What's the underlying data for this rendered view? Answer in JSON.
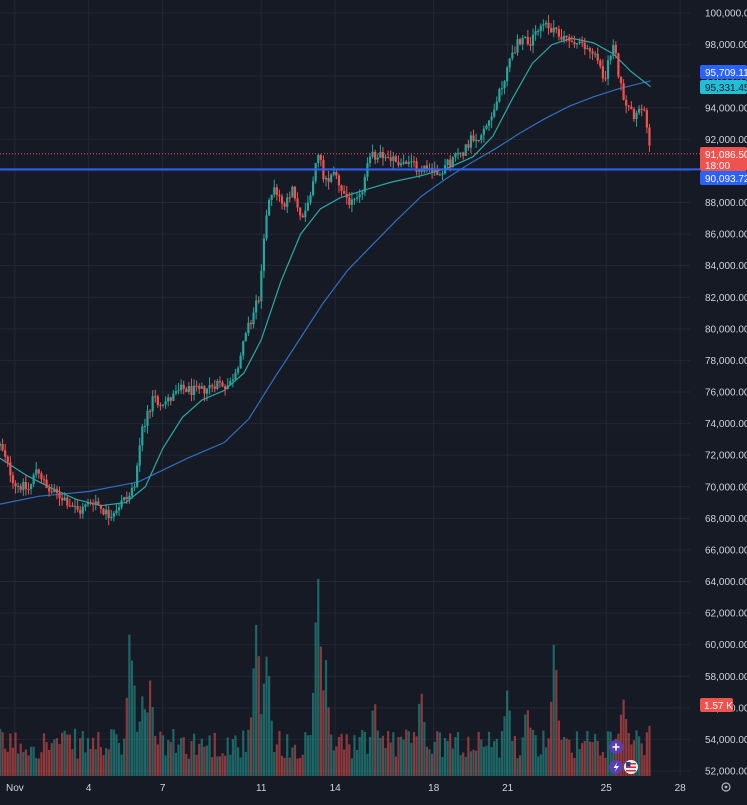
{
  "colors": {
    "background": "#161a25",
    "grid": "#232734",
    "up": "#26a69a",
    "down": "#ef5350",
    "ma_fast": "#2aa9a6",
    "ma_slow": "#2f6fbf",
    "support_line": "#2962ff",
    "axis_text": "#d1d4dc"
  },
  "price_axis": {
    "ticks": [
      "100,000.00",
      "98,000.00",
      "96,000.00",
      "94,000.00",
      "92,000.00",
      "90,000.00",
      "88,000.00",
      "86,000.00",
      "84,000.00",
      "82,000.00",
      "80,000.00",
      "78,000.00",
      "76,000.00",
      "74,000.00",
      "72,000.00",
      "70,000.00",
      "68,000.00",
      "66,000.00",
      "64,000.00",
      "62,000.00",
      "60,000.00",
      "58,000.00",
      "56,000.00",
      "54,000.00",
      "52,000.00"
    ]
  },
  "time_axis": {
    "ticks": [
      {
        "label": "Nov",
        "day": 1
      },
      {
        "label": "4",
        "day": 4
      },
      {
        "label": "7",
        "day": 7
      },
      {
        "label": "11",
        "day": 11
      },
      {
        "label": "14",
        "day": 14
      },
      {
        "label": "18",
        "day": 18
      },
      {
        "label": "21",
        "day": 21
      },
      {
        "label": "25",
        "day": 25
      },
      {
        "label": "28",
        "day": 28
      }
    ]
  },
  "tags": {
    "ma_slow_value": "95,709.11",
    "ma_fast_value": "95,331.45",
    "last_price": "91,086.50",
    "countdown": "18:00",
    "support_level": "90,093.72",
    "volume_value": "1.57 K"
  },
  "chart_data": {
    "type": "candlestick",
    "symbol": "",
    "y_range": [
      52000,
      100700
    ],
    "x_range_days": [
      0.4,
      28.4
    ],
    "support_level": 90093.72,
    "last_price": 91086.5,
    "ma_fast_last": 95331.45,
    "ma_slow_last": 95709.11,
    "volume_last": "1.57 K",
    "price_path": [
      {
        "day": 0.4,
        "price": 72600
      },
      {
        "day": 1.0,
        "price": 70200
      },
      {
        "day": 1.6,
        "price": 69800
      },
      {
        "day": 1.9,
        "price": 71300
      },
      {
        "day": 2.3,
        "price": 69800
      },
      {
        "day": 3.0,
        "price": 69300
      },
      {
        "day": 3.6,
        "price": 68400
      },
      {
        "day": 4.2,
        "price": 69200
      },
      {
        "day": 4.8,
        "price": 68200
      },
      {
        "day": 5.2,
        "price": 68800
      },
      {
        "day": 5.8,
        "price": 69700
      },
      {
        "day": 6.2,
        "price": 73800
      },
      {
        "day": 6.6,
        "price": 75500
      },
      {
        "day": 7.2,
        "price": 75400
      },
      {
        "day": 7.8,
        "price": 76200
      },
      {
        "day": 8.5,
        "price": 76000
      },
      {
        "day": 9.2,
        "price": 76600
      },
      {
        "day": 9.7,
        "price": 76400
      },
      {
        "day": 10.1,
        "price": 78000
      },
      {
        "day": 10.5,
        "price": 80200
      },
      {
        "day": 10.9,
        "price": 82000
      },
      {
        "day": 11.2,
        "price": 87000
      },
      {
        "day": 11.5,
        "price": 89300
      },
      {
        "day": 11.9,
        "price": 87500
      },
      {
        "day": 12.3,
        "price": 88800
      },
      {
        "day": 12.6,
        "price": 86800
      },
      {
        "day": 13.0,
        "price": 88500
      },
      {
        "day": 13.3,
        "price": 91300
      },
      {
        "day": 13.6,
        "price": 89200
      },
      {
        "day": 13.9,
        "price": 90200
      },
      {
        "day": 14.3,
        "price": 88700
      },
      {
        "day": 14.7,
        "price": 87800
      },
      {
        "day": 15.0,
        "price": 88200
      },
      {
        "day": 15.4,
        "price": 90800
      },
      {
        "day": 15.8,
        "price": 91200
      },
      {
        "day": 16.4,
        "price": 90700
      },
      {
        "day": 17.0,
        "price": 90400
      },
      {
        "day": 17.6,
        "price": 90200
      },
      {
        "day": 18.2,
        "price": 90000
      },
      {
        "day": 18.7,
        "price": 90600
      },
      {
        "day": 19.2,
        "price": 91300
      },
      {
        "day": 19.6,
        "price": 92200
      },
      {
        "day": 20.0,
        "price": 92300
      },
      {
        "day": 20.4,
        "price": 93800
      },
      {
        "day": 20.8,
        "price": 95500
      },
      {
        "day": 21.2,
        "price": 97600
      },
      {
        "day": 21.6,
        "price": 98500
      },
      {
        "day": 22.0,
        "price": 98200
      },
      {
        "day": 22.4,
        "price": 99300
      },
      {
        "day": 22.8,
        "price": 98800
      },
      {
        "day": 23.2,
        "price": 98500
      },
      {
        "day": 23.6,
        "price": 98200
      },
      {
        "day": 24.1,
        "price": 97800
      },
      {
        "day": 24.5,
        "price": 97600
      },
      {
        "day": 24.9,
        "price": 95800
      },
      {
        "day": 25.3,
        "price": 98000
      },
      {
        "day": 25.6,
        "price": 95300
      },
      {
        "day": 25.9,
        "price": 94000
      },
      {
        "day": 26.2,
        "price": 93300
      },
      {
        "day": 26.5,
        "price": 94100
      },
      {
        "day": 26.8,
        "price": 91086.5
      }
    ],
    "ma_fast_path": [
      {
        "day": 0.4,
        "price": 71800
      },
      {
        "day": 1.5,
        "price": 70700
      },
      {
        "day": 2.5,
        "price": 69900
      },
      {
        "day": 3.5,
        "price": 69200
      },
      {
        "day": 4.5,
        "price": 68800
      },
      {
        "day": 5.5,
        "price": 69000
      },
      {
        "day": 6.3,
        "price": 70000
      },
      {
        "day": 7.0,
        "price": 72400
      },
      {
        "day": 7.8,
        "price": 74400
      },
      {
        "day": 8.6,
        "price": 75500
      },
      {
        "day": 9.5,
        "price": 76100
      },
      {
        "day": 10.3,
        "price": 77200
      },
      {
        "day": 11.0,
        "price": 79300
      },
      {
        "day": 11.8,
        "price": 83000
      },
      {
        "day": 12.6,
        "price": 86000
      },
      {
        "day": 13.4,
        "price": 87600
      },
      {
        "day": 14.2,
        "price": 88300
      },
      {
        "day": 15.2,
        "price": 88800
      },
      {
        "day": 16.3,
        "price": 89300
      },
      {
        "day": 17.5,
        "price": 89700
      },
      {
        "day": 18.6,
        "price": 90200
      },
      {
        "day": 19.6,
        "price": 90900
      },
      {
        "day": 20.4,
        "price": 92200
      },
      {
        "day": 21.2,
        "price": 94600
      },
      {
        "day": 22.0,
        "price": 96800
      },
      {
        "day": 22.8,
        "price": 98000
      },
      {
        "day": 23.6,
        "price": 98400
      },
      {
        "day": 24.5,
        "price": 98100
      },
      {
        "day": 25.3,
        "price": 97400
      },
      {
        "day": 26.0,
        "price": 96300
      },
      {
        "day": 26.8,
        "price": 95331.45
      }
    ],
    "ma_slow_path": [
      {
        "day": 0.4,
        "price": 68900
      },
      {
        "day": 2.0,
        "price": 69400
      },
      {
        "day": 4.0,
        "price": 69700
      },
      {
        "day": 6.0,
        "price": 70300
      },
      {
        "day": 8.0,
        "price": 71800
      },
      {
        "day": 9.5,
        "price": 72800
      },
      {
        "day": 10.5,
        "price": 74300
      },
      {
        "day": 11.5,
        "price": 76800
      },
      {
        "day": 12.5,
        "price": 79200
      },
      {
        "day": 13.5,
        "price": 81600
      },
      {
        "day": 14.5,
        "price": 83700
      },
      {
        "day": 15.5,
        "price": 85300
      },
      {
        "day": 16.5,
        "price": 86900
      },
      {
        "day": 17.5,
        "price": 88400
      },
      {
        "day": 18.5,
        "price": 89500
      },
      {
        "day": 19.5,
        "price": 90500
      },
      {
        "day": 20.5,
        "price": 91400
      },
      {
        "day": 21.5,
        "price": 92400
      },
      {
        "day": 22.5,
        "price": 93300
      },
      {
        "day": 23.5,
        "price": 94100
      },
      {
        "day": 24.5,
        "price": 94700
      },
      {
        "day": 25.5,
        "price": 95200
      },
      {
        "day": 26.8,
        "price": 95709.11
      }
    ],
    "volume_peaks_pct": [
      {
        "day": 5.7,
        "pct": 0.78
      },
      {
        "day": 6.2,
        "pct": 0.44
      },
      {
        "day": 6.5,
        "pct": 0.55
      },
      {
        "day": 10.8,
        "pct": 0.82
      },
      {
        "day": 11.2,
        "pct": 0.74
      },
      {
        "day": 13.3,
        "pct": 1.0
      },
      {
        "day": 13.6,
        "pct": 0.63
      },
      {
        "day": 15.6,
        "pct": 0.42
      },
      {
        "day": 17.5,
        "pct": 0.47
      },
      {
        "day": 21.0,
        "pct": 0.45
      },
      {
        "day": 21.8,
        "pct": 0.43
      },
      {
        "day": 22.9,
        "pct": 0.7
      },
      {
        "day": 25.7,
        "pct": 0.47
      },
      {
        "day": 26.8,
        "pct": 0.3
      }
    ]
  }
}
